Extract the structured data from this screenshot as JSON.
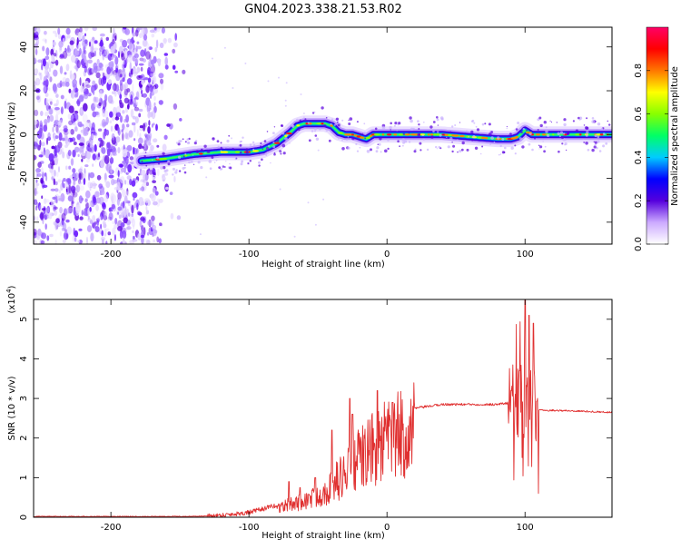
{
  "figure_title": "GN04.2023.338.21.53.R02",
  "chart_data": [
    {
      "type": "heatmap",
      "title": "",
      "xlabel": "Height of straight line (km)",
      "ylabel": "Frequency (Hz)",
      "xlim": [
        -256,
        163
      ],
      "ylim": [
        -50,
        49
      ],
      "xticks": [
        -200,
        -100,
        0,
        100
      ],
      "yticks": [
        -40,
        -20,
        0,
        20,
        40
      ],
      "noise_region_x": [
        -256,
        -145
      ],
      "ridge": {
        "x": [
          -178,
          -160,
          -140,
          -120,
          -100,
          -90,
          -80,
          -70,
          -65,
          -60,
          -55,
          -50,
          -45,
          -40,
          -35,
          -30,
          -25,
          -20,
          -15,
          -10,
          0,
          20,
          40,
          60,
          80,
          90,
          95,
          100,
          105,
          120,
          140,
          163
        ],
        "freq": [
          -12,
          -11,
          -9,
          -8,
          -8,
          -7,
          -4,
          1,
          4,
          5,
          5,
          5,
          5,
          4,
          1,
          0,
          0,
          -1,
          -2,
          0,
          0,
          0,
          0,
          -1,
          -2,
          -2,
          -1,
          2,
          0,
          0,
          0,
          0
        ]
      },
      "colorbar": {
        "label": "Normalized spectral amplitude",
        "ticks": [
          0.0,
          0.2,
          0.4,
          0.6,
          0.8
        ],
        "range": [
          0,
          1
        ],
        "colors": [
          "#ffffff",
          "#ccaaff",
          "#5500dd",
          "#0000ff",
          "#00ccff",
          "#00ff66",
          "#88ff00",
          "#ffff00",
          "#ff7700",
          "#ff0000",
          "#ff0066"
        ]
      }
    },
    {
      "type": "line",
      "title": "",
      "xlabel": "Height of straight line (km)",
      "ylabel": "SNR (10 * v/v)",
      "y_multiplier": "(x10",
      "y_multiplier_exp": "4",
      "y_multiplier_close": ")",
      "xlim": [
        -256,
        163
      ],
      "ylim": [
        0,
        5.5
      ],
      "xticks": [
        -200,
        -100,
        0,
        100
      ],
      "yticks": [
        0,
        1,
        2,
        3,
        4,
        5
      ],
      "color": "#e03030",
      "envelope": {
        "x": [
          -256,
          -150,
          -130,
          -120,
          -100,
          -80,
          -60,
          -45,
          -35,
          -25,
          -15,
          0,
          20,
          40,
          60,
          80,
          90,
          95,
          100,
          105,
          110,
          120,
          140,
          163
        ],
        "y": [
          0.02,
          0.02,
          0.03,
          0.05,
          0.12,
          0.3,
          0.5,
          0.8,
          1.2,
          1.6,
          2.0,
          2.4,
          2.75,
          2.85,
          2.85,
          2.85,
          2.9,
          2.9,
          2.9,
          2.8,
          2.7,
          2.7,
          2.68,
          2.65
        ]
      },
      "spikes": [
        {
          "x": -71,
          "y": 0.9
        },
        {
          "x": -63,
          "y": 0.75
        },
        {
          "x": -52,
          "y": 1.0
        },
        {
          "x": -40,
          "y": 2.2
        },
        {
          "x": -27,
          "y": 3.0
        },
        {
          "x": -25,
          "y": 2.6
        },
        {
          "x": -7,
          "y": 3.2
        },
        {
          "x": 4,
          "y": 2.9
        },
        {
          "x": 90,
          "y": 3.2
        },
        {
          "x": 96,
          "y": 3.7
        },
        {
          "x": 100,
          "y": 5.5
        },
        {
          "x": 103,
          "y": 5.1
        },
        {
          "x": 106,
          "y": 4.9
        }
      ]
    }
  ]
}
